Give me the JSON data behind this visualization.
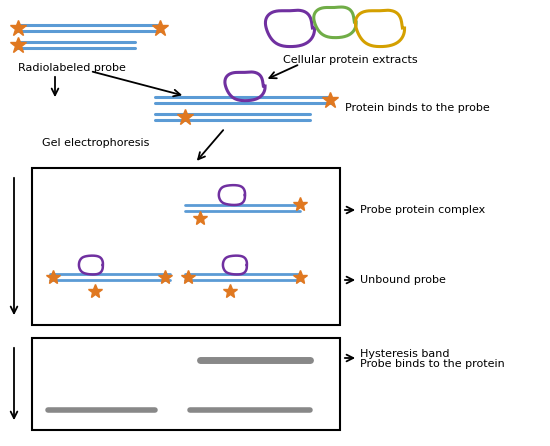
{
  "bg_color": "#ffffff",
  "probe_color": "#5b9bd5",
  "star_color": "#e07820",
  "protein_purple": "#7030a0",
  "protein_green": "#70ad47",
  "protein_gold": "#d4a000",
  "band_color": "#888888",
  "box_color": "#000000",
  "text_color": "#000000",
  "labels": {
    "radiolabeled_probe": "Radiolabeled probe",
    "cellular_protein": "Cellular protein extracts",
    "protein_binds": "Protein binds to the probe",
    "gel_electrophoresis": "Gel electrophoresis",
    "probe_protein_complex": "Probe protein complex",
    "unbound_probe": "Unbound probe",
    "hysteresis_band": "Hysteresis band",
    "probe_binds": "Probe binds to the protein"
  }
}
